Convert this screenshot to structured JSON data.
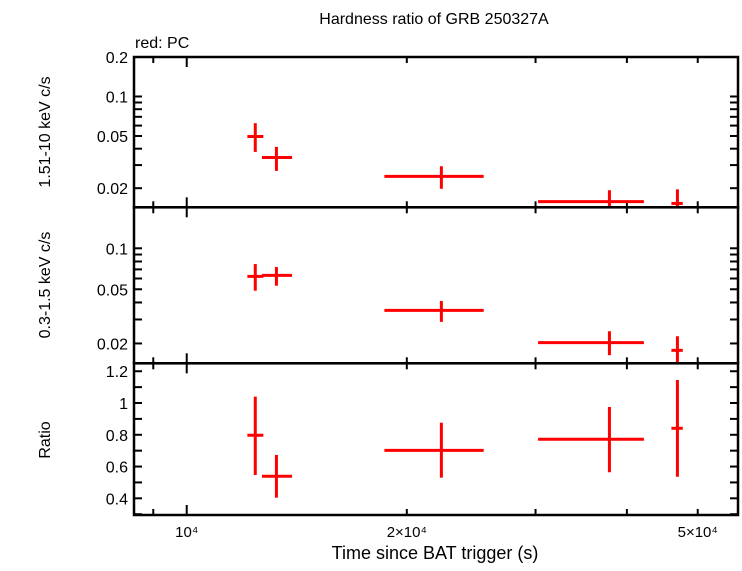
{
  "chart_data": [
    {
      "type": "scatter",
      "title": "Hardness ratio of GRB 250327A",
      "legend": "red: PC",
      "ylabel": "1.51-10 keV c/s",
      "yscale": "log",
      "ylim": [
        0.0143,
        0.2
      ],
      "yticks": [
        {
          "v": 0.2,
          "label": "0.2"
        },
        {
          "v": 0.1,
          "label": "0.1"
        },
        {
          "v": 0.05,
          "label": "0.05"
        },
        {
          "v": 0.02,
          "label": "0.02"
        }
      ],
      "points": [
        {
          "x": 12410,
          "xlo": 12105,
          "xhi": 12730,
          "y": 0.0496,
          "ylo": 0.0378,
          "yhi": 0.0626
        },
        {
          "x": 13265,
          "xlo": 12675,
          "xhi": 13935,
          "y": 0.0343,
          "ylo": 0.0271,
          "yhi": 0.0413
        },
        {
          "x": 22300,
          "xlo": 18635,
          "xhi": 25480,
          "y": 0.0246,
          "ylo": 0.0198,
          "yhi": 0.0294
        },
        {
          "x": 37860,
          "xlo": 30240,
          "xhi": 42200,
          "y": 0.0158,
          "ylo": 0.0145,
          "yhi": 0.0193
        },
        {
          "x": 46900,
          "xlo": 46020,
          "xhi": 47700,
          "y": 0.0153,
          "ylo": 0.0142,
          "yhi": 0.0196
        }
      ]
    },
    {
      "type": "scatter",
      "ylabel": "0.3-1.5 keV c/s",
      "yscale": "log",
      "ylim": [
        0.0143,
        0.2
      ],
      "yticks": [
        {
          "v": 0.1,
          "label": "0.1"
        },
        {
          "v": 0.05,
          "label": "0.05"
        },
        {
          "v": 0.02,
          "label": "0.02"
        }
      ],
      "points": [
        {
          "x": 12410,
          "xlo": 12105,
          "xhi": 12730,
          "y": 0.0622,
          "ylo": 0.0488,
          "yhi": 0.0766
        },
        {
          "x": 13265,
          "xlo": 12675,
          "xhi": 13935,
          "y": 0.0633,
          "ylo": 0.0531,
          "yhi": 0.0728
        },
        {
          "x": 22300,
          "xlo": 18635,
          "xhi": 25480,
          "y": 0.035,
          "ylo": 0.0288,
          "yhi": 0.041
        },
        {
          "x": 37860,
          "xlo": 30240,
          "xhi": 42200,
          "y": 0.0203,
          "ylo": 0.0164,
          "yhi": 0.0246
        },
        {
          "x": 46900,
          "xlo": 46020,
          "xhi": 47700,
          "y": 0.0178,
          "ylo": 0.0142,
          "yhi": 0.0226
        }
      ]
    },
    {
      "type": "scatter",
      "ylabel": "Ratio",
      "yscale": "linear",
      "ylim": [
        0.295,
        1.25
      ],
      "yticks": [
        {
          "v": 1.2,
          "label": "1.2"
        },
        {
          "v": 1.0,
          "label": "1"
        },
        {
          "v": 0.8,
          "label": "0.8"
        },
        {
          "v": 0.6,
          "label": "0.6"
        },
        {
          "v": 0.4,
          "label": "0.4"
        }
      ],
      "points": [
        {
          "x": 12410,
          "xlo": 12105,
          "xhi": 12730,
          "y": 0.797,
          "ylo": 0.547,
          "yhi": 1.04
        },
        {
          "x": 13265,
          "xlo": 12675,
          "xhi": 13935,
          "y": 0.539,
          "ylo": 0.404,
          "yhi": 0.673
        },
        {
          "x": 22300,
          "xlo": 18635,
          "xhi": 25480,
          "y": 0.702,
          "ylo": 0.53,
          "yhi": 0.876
        },
        {
          "x": 37860,
          "xlo": 30240,
          "xhi": 42200,
          "y": 0.772,
          "ylo": 0.564,
          "yhi": 0.975
        },
        {
          "x": 46900,
          "xlo": 46020,
          "xhi": 47700,
          "y": 0.841,
          "ylo": 0.536,
          "yhi": 1.145
        }
      ],
      "xlabel": "Time since BAT trigger (s)",
      "xscale": "log",
      "xlim": [
        8470,
        56760
      ],
      "xticks": [
        {
          "v": 10000,
          "label": "10⁴"
        },
        {
          "v": 20000,
          "label": "2×10⁴"
        },
        {
          "v": 50000,
          "label": "5×10⁴"
        }
      ]
    }
  ],
  "colors": {
    "series": "#ff0000",
    "axes": "#000000"
  }
}
